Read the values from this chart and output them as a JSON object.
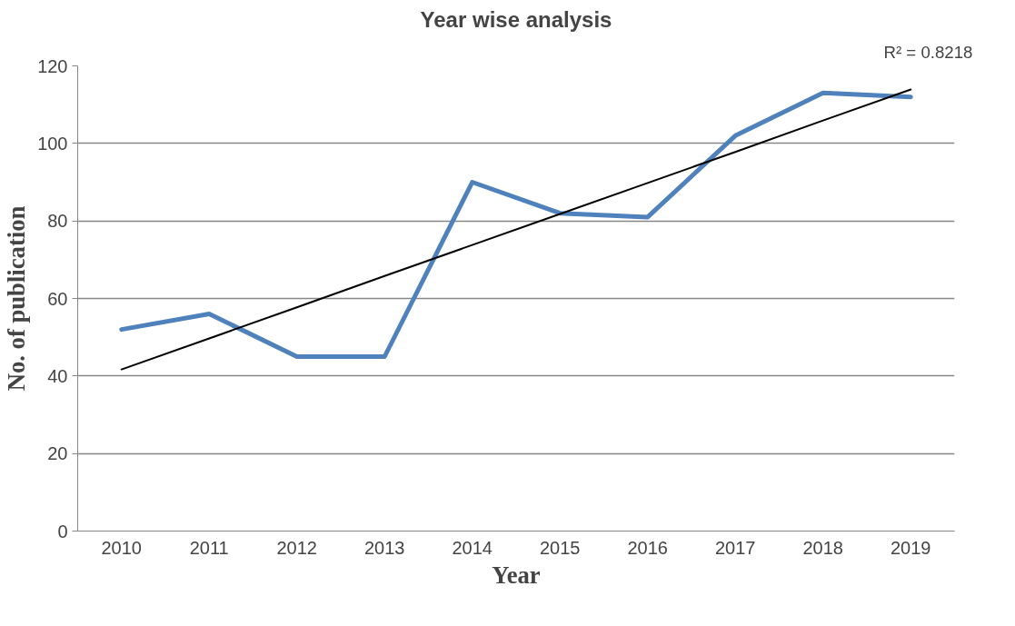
{
  "chart_data": {
    "type": "line",
    "title": "Year wise analysis",
    "xlabel": "Year",
    "ylabel": "No. of publication",
    "categories": [
      "2010",
      "2011",
      "2012",
      "2013",
      "2014",
      "2015",
      "2016",
      "2017",
      "2018",
      "2019"
    ],
    "series": [
      {
        "color": "#4f81bd",
        "values": [
          52,
          56,
          45,
          45,
          90,
          82,
          81,
          102,
          113,
          112
        ]
      },
      {
        "type": "line",
        "color": "#000000",
        "values": [
          41.7,
          49.7,
          57.7,
          65.8,
          73.8,
          81.8,
          89.8,
          97.8,
          105.9,
          113.9
        ]
      }
    ],
    "annotations": [
      "R² = 0.8218"
    ],
    "ylim": [
      0,
      120
    ],
    "yticks": [
      0,
      20,
      40,
      60,
      80,
      100,
      120
    ],
    "grid": "y"
  }
}
